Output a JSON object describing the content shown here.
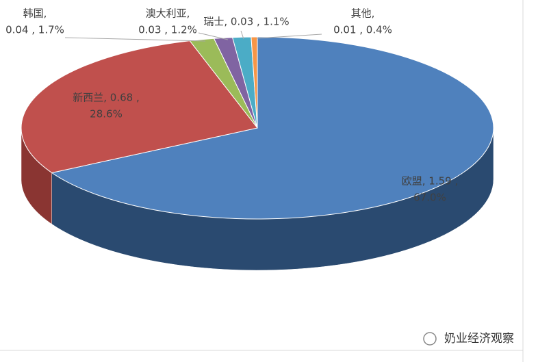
{
  "chart_data": {
    "type": "pie3d",
    "values": [
      1.59,
      0.68,
      0.04,
      0.03,
      0.03,
      0.01
    ],
    "value_labels": [
      [
        "欧盟, 1.59 ,",
        "67.0%"
      ],
      [
        "新西兰, 0.68 ,",
        "28.6%"
      ],
      [
        "韩国,",
        "0.04 , 1.7%"
      ],
      [
        "澳大利亚,",
        "0.03 , 1.2%"
      ],
      [
        "瑞士, 0.03 , 1.1%"
      ],
      [
        "其他,",
        "0.01 , 0.4%"
      ]
    ],
    "colors": [
      "#4f81bd",
      "#c0504d",
      "#9bbb59",
      "#8064a2",
      "#4bacc6",
      "#f79646"
    ],
    "side_colors": [
      "#2a4a70",
      "#8a3532",
      "#6f8a3c",
      "#5b4676",
      "#337e92",
      "#b86e30"
    ],
    "watermark": "奶业经济观察"
  }
}
